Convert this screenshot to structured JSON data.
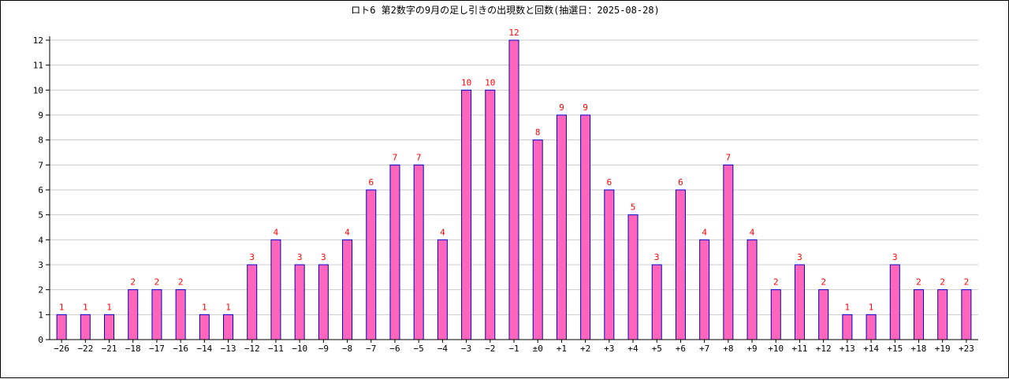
{
  "chart_data": {
    "type": "bar",
    "title": "ロト6 第2数字の9月の足し引きの出現数と回数(抽選日：2025-08-28)",
    "categories": [
      "−26",
      "−22",
      "−21",
      "−18",
      "−17",
      "−16",
      "−14",
      "−13",
      "−12",
      "−11",
      "−10",
      "−9",
      "−8",
      "−7",
      "−6",
      "−5",
      "−4",
      "−3",
      "−2",
      "−1",
      "±0",
      "+1",
      "+2",
      "+3",
      "+4",
      "+5",
      "+6",
      "+7",
      "+8",
      "+9",
      "+10",
      "+11",
      "+12",
      "+13",
      "+14",
      "+15",
      "+18",
      "+19",
      "+23"
    ],
    "values": [
      1,
      1,
      1,
      2,
      2,
      2,
      1,
      1,
      3,
      4,
      3,
      3,
      4,
      6,
      7,
      7,
      4,
      10,
      10,
      12,
      8,
      9,
      9,
      6,
      5,
      3,
      6,
      4,
      7,
      4,
      2,
      3,
      2,
      1,
      1,
      3,
      2,
      2,
      2
    ],
    "ylim": [
      0,
      12
    ],
    "yticks": [
      0,
      1,
      2,
      3,
      4,
      5,
      6,
      7,
      8,
      9,
      10,
      11,
      12
    ],
    "grid": true,
    "legend": "none",
    "colors": {
      "bar_fill": "#ff66bb",
      "bar_stroke": "#0000cc",
      "data_label": "#ff0000",
      "grid": "#cccccc",
      "axis": "#000000"
    }
  }
}
